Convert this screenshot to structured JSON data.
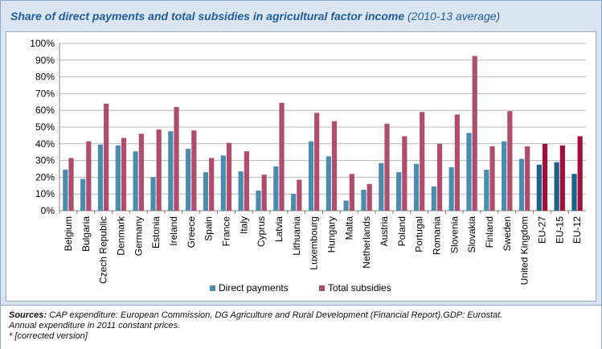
{
  "title": "Share of direct payments and total subsidies in agricultural factor income",
  "subtitle": "(2010-13 average)",
  "footer": {
    "sources_label": "Sources:",
    "sources_text": "CAP expenditure: European Commission, DG Agriculture and Rural Development (Financial Report).GDP: Eurostat.",
    "line2": "Annual expenditure in 2011 constant prices.",
    "line3": "* [corrected version]"
  },
  "colors": {
    "direct": "#4a8bb0",
    "total": "#b04c6d",
    "direct_eu": "#1f5f8b",
    "total_eu": "#a10f3a"
  },
  "chart_data": {
    "type": "bar",
    "title": "Share of direct payments and total subsidies in agricultural factor income",
    "ylim": [
      0,
      100
    ],
    "yticks": [
      "0%",
      "10%",
      "20%",
      "30%",
      "40%",
      "50%",
      "60%",
      "70%",
      "80%",
      "90%",
      "100%"
    ],
    "grid": true,
    "legend_position": "bottom",
    "categories": [
      "Belgium",
      "Bulgaria",
      "Czech Republic",
      "Denmark",
      "Germany",
      "Estonia",
      "Ireland",
      "Greece",
      "Spain",
      "France",
      "Italy",
      "Cyprus",
      "Latvia",
      "Lithuania",
      "Luxembourg",
      "Hungary",
      "Malta",
      "Netherlands",
      "Austria",
      "Poland",
      "Portugal",
      "Romania",
      "Slovenia",
      "Slovakia",
      "Finland",
      "Sweden",
      "United Kingdom",
      "EU-27",
      "EU-15",
      "EU-12"
    ],
    "series": [
      {
        "name": "Direct payments",
        "values": [
          24.5,
          19,
          39.5,
          39,
          35.5,
          20,
          47.5,
          37,
          23,
          33,
          23.5,
          12,
          26.5,
          10,
          41.5,
          32.5,
          6,
          12.5,
          28.5,
          23,
          28,
          14.5,
          26,
          46.5,
          24.5,
          41.5,
          31,
          27.5,
          29,
          22
        ]
      },
      {
        "name": "Total subsidies",
        "values": [
          31.5,
          41.5,
          64,
          43.5,
          46,
          48.5,
          62,
          48,
          31.5,
          40.5,
          35.5,
          21.5,
          64.5,
          18.5,
          58.5,
          53.5,
          22,
          16,
          52,
          44.5,
          59,
          40,
          57.5,
          92.5,
          38.5,
          59.5,
          38.5,
          40,
          39,
          44.5
        ]
      }
    ]
  }
}
